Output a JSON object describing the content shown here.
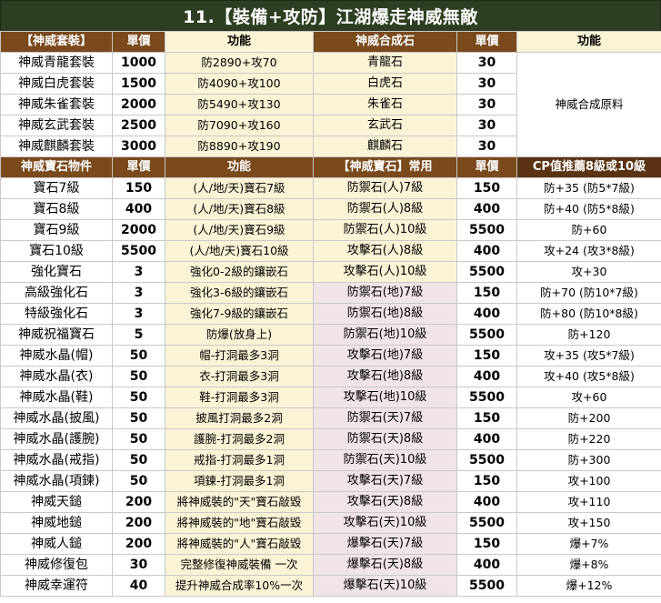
{
  "title": "11.【裝備+攻防】江湖爆走神威無敵",
  "header1": [
    "【神威套裝】",
    "單價",
    "功能",
    "神威合成石",
    "單價",
    "功能"
  ],
  "set_rows": [
    {
      "name": "神威青龍套裝",
      "price": "1000",
      "func": "防2890+攻70",
      "stone": "青龍石",
      "sprice": "30"
    },
    {
      "name": "神威白虎套裝",
      "price": "1500",
      "func": "防4090+攻100",
      "stone": "白虎石",
      "sprice": "30"
    },
    {
      "name": "神威朱雀套裝",
      "price": "2000",
      "func": "防5490+攻130",
      "stone": "朱雀石",
      "sprice": "30"
    },
    {
      "name": "神威玄武套裝",
      "price": "2500",
      "func": "防7090+攻160",
      "stone": "玄武石",
      "sprice": "30"
    },
    {
      "name": "神威麒麟套裝",
      "price": "3000",
      "func": "防8890+攻190",
      "stone": "麒麟石",
      "sprice": "30"
    }
  ],
  "set_note": "神威合成原料",
  "header2": [
    "神威寶石物件",
    "單價",
    "功能",
    "【神威寶石】常用",
    "單價",
    "CP值推薦8級或10級"
  ],
  "gem_rows": [
    {
      "name": "寶石7級",
      "price": "150",
      "func": "(人/地/天)寶石7級",
      "stone": "防禦石(人)7級",
      "sprice": "150",
      "effect": "防+35 (防5*7級)"
    },
    {
      "name": "寶石8級",
      "price": "400",
      "func": "(人/地/天)寶石8級",
      "stone": "防禦石(人)8級",
      "sprice": "400",
      "effect": "防+40 (防5*8級)"
    },
    {
      "name": "寶石9級",
      "price": "2000",
      "func": "(人/地/天)寶石9級",
      "stone": "防禦石(人)10級",
      "sprice": "5500",
      "effect": "防+60"
    },
    {
      "name": "寶石10級",
      "price": "5500",
      "func": "(人/地/天)寶石10級",
      "stone": "攻擊石(人)8級",
      "sprice": "400",
      "effect": "攻+24 (攻3*8級)"
    },
    {
      "name": "強化寶石",
      "price": "3",
      "func": "強化0-2級的鑲嵌石",
      "stone": "攻擊石(人)10級",
      "sprice": "5500",
      "effect": "攻+30"
    },
    {
      "name": "高級強化石",
      "price": "3",
      "func": "強化3-6級的鑲嵌石",
      "stone": "防禦石(地)7級",
      "sprice": "150",
      "effect": "防+70 (防10*7級)"
    },
    {
      "name": "特級強化石",
      "price": "3",
      "func": "強化7-9級的鑲嵌石",
      "stone": "防禦石(地)8級",
      "sprice": "400",
      "effect": "防+80 (防10*8級)"
    },
    {
      "name": "神威祝福寶石",
      "price": "5",
      "func": "防爆(放身上)",
      "stone": "防禦石(地)10級",
      "sprice": "5500",
      "effect": "防+120"
    },
    {
      "name": "神威水晶(帽)",
      "price": "50",
      "func": "帽-打洞最多3洞",
      "stone": "攻擊石(地)7級",
      "sprice": "150",
      "effect": "攻+35 (攻5*7級)"
    },
    {
      "name": "神威水晶(衣)",
      "price": "50",
      "func": "衣-打洞最多3洞",
      "stone": "攻擊石(地)8級",
      "sprice": "400",
      "effect": "攻+40 (攻5*8級)"
    },
    {
      "name": "神威水晶(鞋)",
      "price": "50",
      "func": "鞋-打洞最多3洞",
      "stone": "攻擊石(地)10級",
      "sprice": "5500",
      "effect": "攻+60"
    },
    {
      "name": "神威水晶(披風)",
      "price": "50",
      "func": "披風打洞最多2洞",
      "stone": "防禦石(天)7級",
      "sprice": "150",
      "effect": "防+200"
    },
    {
      "name": "神威水晶(護腕)",
      "price": "50",
      "func": "護腕-打洞最多2洞",
      "stone": "防禦石(天)8級",
      "sprice": "400",
      "effect": "防+220"
    },
    {
      "name": "神威水晶(戒指)",
      "price": "50",
      "func": "戒指-打洞最多1洞",
      "stone": "防禦石(天)10級",
      "sprice": "5500",
      "effect": "防+300"
    },
    {
      "name": "神威水晶(項鍊)",
      "price": "50",
      "func": "項鍊-打洞最多1洞",
      "stone": "攻擊石(天)7級",
      "sprice": "150",
      "effect": "攻+100"
    },
    {
      "name": "神威天鎚",
      "price": "200",
      "func": "將神威裝的\"天\"寶石敲毀",
      "stone": "攻擊石(天)8級",
      "sprice": "400",
      "effect": "攻+110"
    },
    {
      "name": "神威地鎚",
      "price": "200",
      "func": "將神威裝的\"地\"寶石敲毀",
      "stone": "攻擊石(天)10級",
      "sprice": "5500",
      "effect": "攻+150"
    },
    {
      "name": "神威人鎚",
      "price": "200",
      "func": "將神威裝的\"人\"寶石敲毀",
      "stone": "爆擊石(天)7級",
      "sprice": "150",
      "effect": "爆+7%"
    },
    {
      "name": "神威修復包",
      "price": "30",
      "func": "完整修復神威裝備 一次",
      "stone": "爆擊石(天)8級",
      "sprice": "400",
      "effect": "爆+8%"
    },
    {
      "name": "神威幸運符",
      "price": "40",
      "func": "提升神威合成率10%一次",
      "stone": "爆擊石(天)10級",
      "sprice": "5500",
      "effect": "爆+12%"
    }
  ]
}
